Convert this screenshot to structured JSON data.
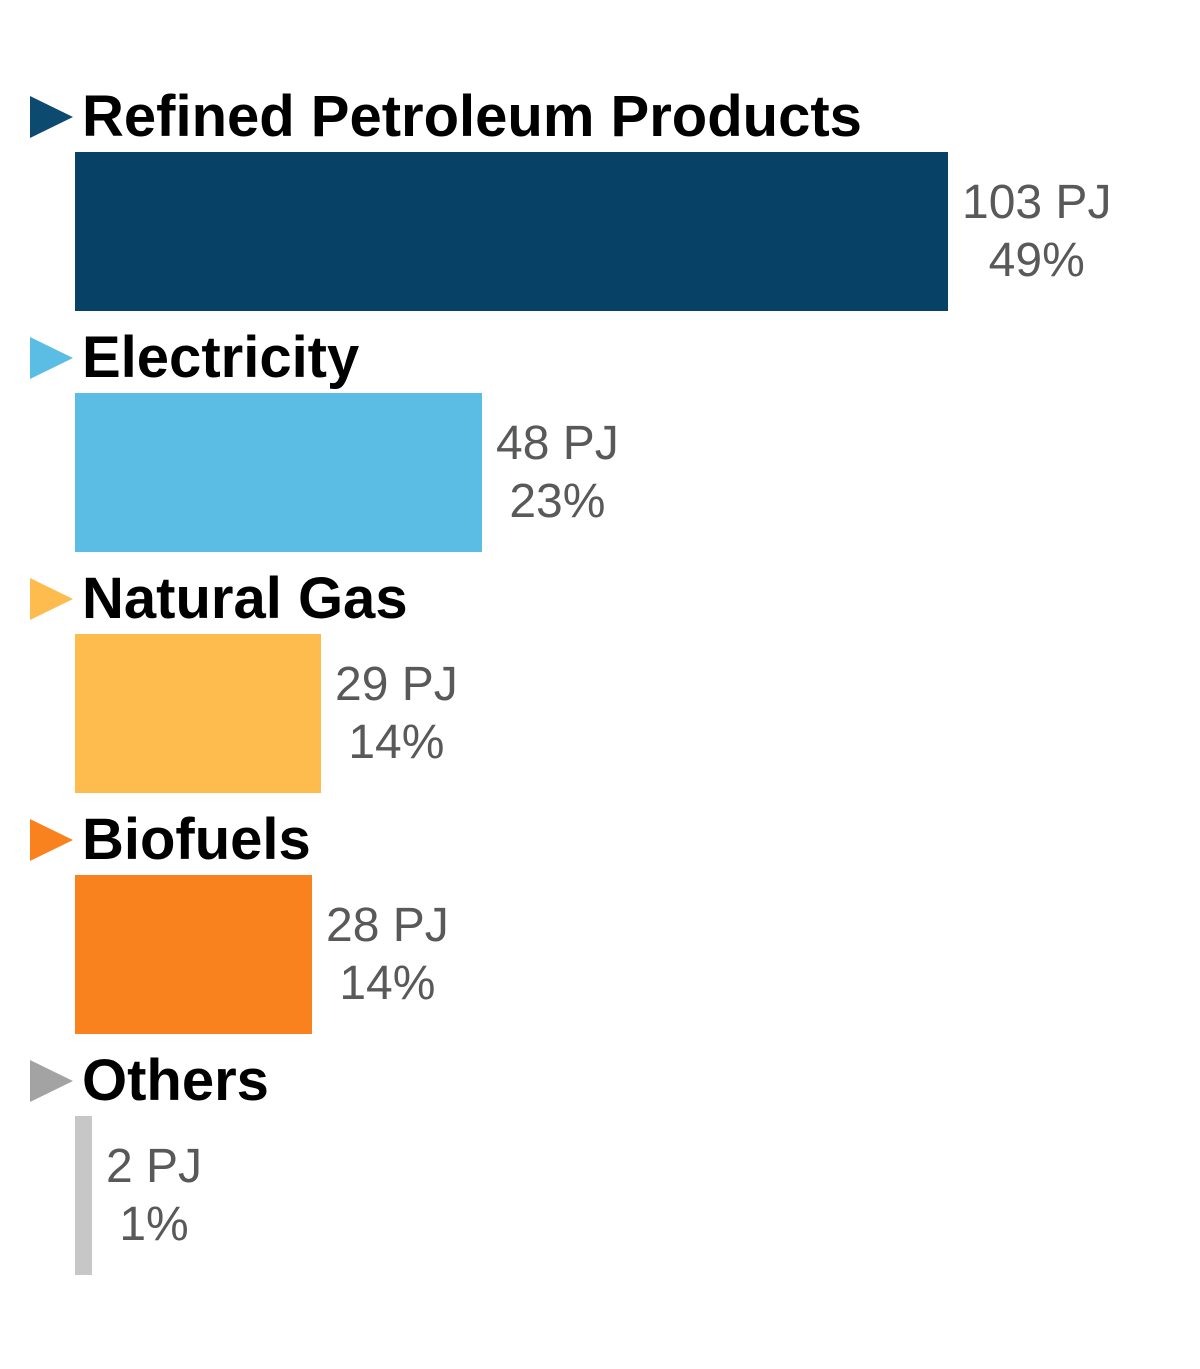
{
  "chart_data": {
    "type": "bar",
    "orientation": "horizontal",
    "title": "",
    "unit": "PJ",
    "categories": [
      "Refined Petroleum Products",
      "Electricity",
      "Natural Gas",
      "Biofuels",
      "Others"
    ],
    "values_pj": [
      103,
      48,
      29,
      28,
      2
    ],
    "percents": [
      49,
      23,
      14,
      14,
      1
    ],
    "xlim": [
      0,
      103
    ],
    "grid": false,
    "legend_position": "none",
    "axis_ticks_visible": false,
    "label_text_color": "#000000",
    "value_text_color": "#595959",
    "items": [
      {
        "label": "Refined Petroleum Products",
        "value_pj": 103,
        "percent": 49,
        "value_label": "103 PJ",
        "percent_label": "49%",
        "color": "#074166",
        "marker_color": "#0d4a70"
      },
      {
        "label": "Electricity",
        "value_pj": 48,
        "percent": 23,
        "value_label": "48 PJ",
        "percent_label": "23%",
        "color": "#5bbce4",
        "marker_color": "#5bbce4"
      },
      {
        "label": "Natural Gas",
        "value_pj": 29,
        "percent": 14,
        "value_label": "29 PJ",
        "percent_label": "14%",
        "color": "#fdbc4d",
        "marker_color": "#fdbc4d"
      },
      {
        "label": "Biofuels",
        "value_pj": 28,
        "percent": 14,
        "value_label": "28 PJ",
        "percent_label": "14%",
        "color": "#f9821e",
        "marker_color": "#f9821e"
      },
      {
        "label": "Others",
        "value_pj": 2,
        "percent": 1,
        "value_label": "2 PJ",
        "percent_label": "1%",
        "color": "#c7c7c7",
        "marker_color": "#a3a3a3"
      }
    ]
  }
}
